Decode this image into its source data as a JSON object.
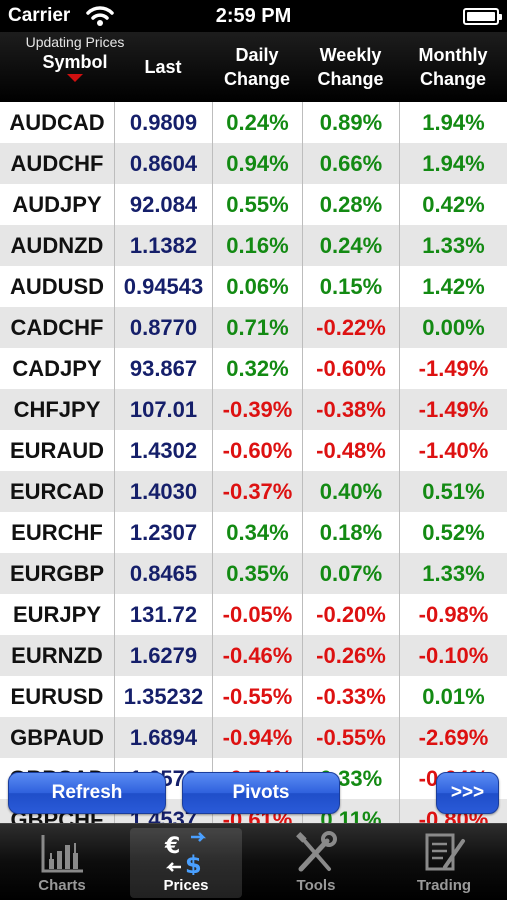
{
  "status_bar": {
    "carrier": "Carrier",
    "time": "2:59 PM",
    "wifi_icon": "wifi-icon",
    "battery_icon": "battery-icon"
  },
  "header": {
    "updating": "Updating Prices",
    "symbol": "Symbol",
    "last": "Last",
    "daily_1": "Daily",
    "daily_2": "Change",
    "weekly_1": "Weekly",
    "weekly_2": "Change",
    "monthly_1": "Monthly",
    "monthly_2": "Change",
    "sort_icon": "sort-desc-caret-icon"
  },
  "rows": [
    {
      "symbol": "AUDCAD",
      "last": "0.9809",
      "daily": "0.24%",
      "weekly": "0.89%",
      "monthly": "1.94%"
    },
    {
      "symbol": "AUDCHF",
      "last": "0.8604",
      "daily": "0.94%",
      "weekly": "0.66%",
      "monthly": "1.94%"
    },
    {
      "symbol": "AUDJPY",
      "last": "92.084",
      "daily": "0.55%",
      "weekly": "0.28%",
      "monthly": "0.42%"
    },
    {
      "symbol": "AUDNZD",
      "last": "1.1382",
      "daily": "0.16%",
      "weekly": "0.24%",
      "monthly": "1.33%"
    },
    {
      "symbol": "AUDUSD",
      "last": "0.94543",
      "daily": "0.06%",
      "weekly": "0.15%",
      "monthly": "1.42%"
    },
    {
      "symbol": "CADCHF",
      "last": "0.8770",
      "daily": "0.71%",
      "weekly": "-0.22%",
      "monthly": "0.00%"
    },
    {
      "symbol": "CADJPY",
      "last": "93.867",
      "daily": "0.32%",
      "weekly": "-0.60%",
      "monthly": "-1.49%"
    },
    {
      "symbol": "CHFJPY",
      "last": "107.01",
      "daily": "-0.39%",
      "weekly": "-0.38%",
      "monthly": "-1.49%"
    },
    {
      "symbol": "EURAUD",
      "last": "1.4302",
      "daily": "-0.60%",
      "weekly": "-0.48%",
      "monthly": "-1.40%"
    },
    {
      "symbol": "EURCAD",
      "last": "1.4030",
      "daily": "-0.37%",
      "weekly": "0.40%",
      "monthly": "0.51%"
    },
    {
      "symbol": "EURCHF",
      "last": "1.2307",
      "daily": "0.34%",
      "weekly": "0.18%",
      "monthly": "0.52%"
    },
    {
      "symbol": "EURGBP",
      "last": "0.8465",
      "daily": "0.35%",
      "weekly": "0.07%",
      "monthly": "1.33%"
    },
    {
      "symbol": "EURJPY",
      "last": "131.72",
      "daily": "-0.05%",
      "weekly": "-0.20%",
      "monthly": "-0.98%"
    },
    {
      "symbol": "EURNZD",
      "last": "1.6279",
      "daily": "-0.46%",
      "weekly": "-0.26%",
      "monthly": "-0.10%"
    },
    {
      "symbol": "EURUSD",
      "last": "1.35232",
      "daily": "-0.55%",
      "weekly": "-0.33%",
      "monthly": "0.01%"
    },
    {
      "symbol": "GBPAUD",
      "last": "1.6894",
      "daily": "-0.94%",
      "weekly": "-0.55%",
      "monthly": "-2.69%"
    },
    {
      "symbol": "GBPCAD",
      "last": "1.6570",
      "daily": "-0.74%",
      "weekly": "0.33%",
      "monthly": "-0.64%"
    },
    {
      "symbol": "GBPCHF",
      "last": "1.4537",
      "daily": "-0.61%",
      "weekly": "0.11%",
      "monthly": "-0.80%"
    }
  ],
  "buttons": {
    "refresh": "Refresh",
    "pivots": "Pivots",
    "more": ">>>"
  },
  "tabs": [
    {
      "label": "Charts",
      "icon": "bar-chart-icon"
    },
    {
      "label": "Prices",
      "icon": "currency-exchange-icon"
    },
    {
      "label": "Tools",
      "icon": "wrench-screwdriver-icon"
    },
    {
      "label": "Trading",
      "icon": "document-pen-icon"
    }
  ],
  "colors": {
    "positive": "#138a13",
    "negative": "#dd1111",
    "last_price": "#151f6a",
    "button_blue": "#2f61dd"
  }
}
